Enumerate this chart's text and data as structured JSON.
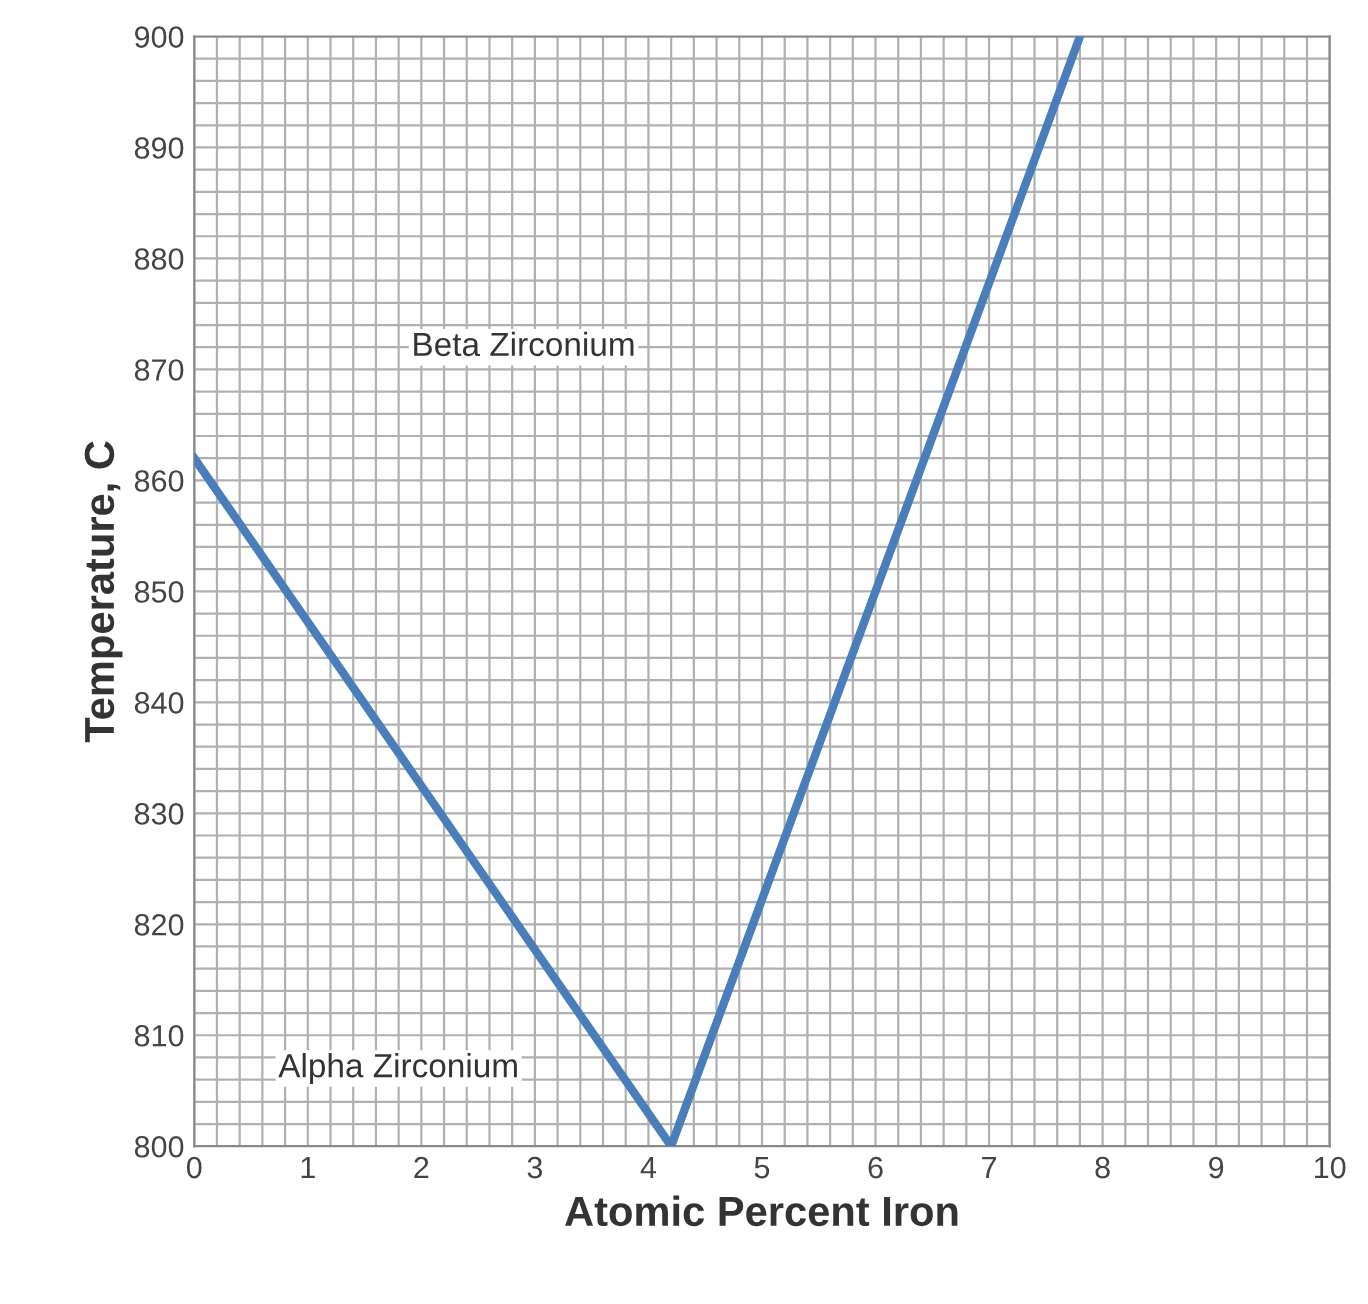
{
  "chart_data": {
    "type": "line",
    "xlabel": "Atomic Percent Iron",
    "ylabel": "Temperature, C",
    "series": [
      {
        "color": "#4a7ebb",
        "x": [
          0,
          4.2,
          7.8
        ],
        "values": [
          862,
          800,
          900
        ]
      }
    ],
    "xlim": [
      0,
      10
    ],
    "xticks": [
      0,
      1,
      2,
      3,
      4,
      5,
      6,
      7,
      8,
      9,
      10
    ],
    "ylim": [
      800,
      900
    ],
    "yticks": [
      800,
      810,
      820,
      830,
      840,
      850,
      860,
      870,
      880,
      890,
      900
    ],
    "grid": true,
    "marker": "none",
    "line_style": "solid",
    "annotations": [
      "Beta Zirconium",
      "Alpha Zirconium"
    ]
  }
}
